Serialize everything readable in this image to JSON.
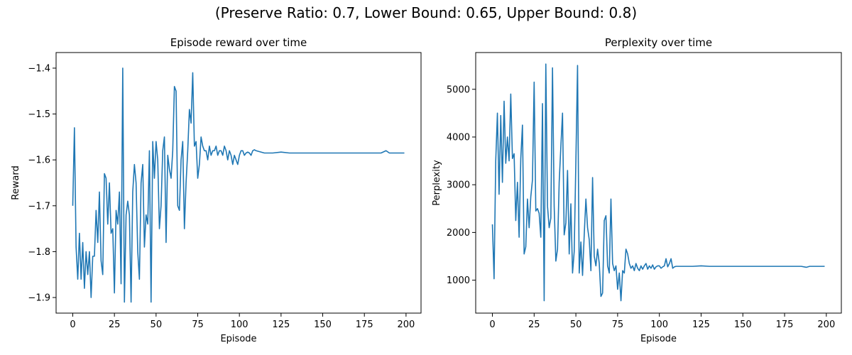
{
  "figure": {
    "suptitle": "(Preserve Ratio: 0.7, Lower Bound: 0.65, Upper Bound: 0.8)"
  },
  "colors": {
    "line": "#1f77b4",
    "axis": "#000000"
  },
  "chart_data": [
    {
      "type": "line",
      "title": "Episode reward over time",
      "xlabel": "Episode",
      "ylabel": "Reward",
      "xlim": [
        -10,
        209
      ],
      "ylim": [
        -1.934,
        -1.366
      ],
      "xticks": [
        0,
        25,
        50,
        75,
        100,
        125,
        150,
        175,
        200
      ],
      "yticks": [
        -1.9,
        -1.8,
        -1.7,
        -1.6,
        -1.5,
        -1.4
      ],
      "ytick_labels": [
        "−1.9",
        "−1.8",
        "−1.7",
        "−1.6",
        "−1.5",
        "−1.4"
      ],
      "grid": false,
      "series": [
        {
          "x": [
            0,
            1,
            2,
            3,
            4,
            5,
            6,
            7,
            8,
            9,
            10,
            11,
            12,
            13,
            14,
            15,
            16,
            17,
            18,
            19,
            20,
            21,
            22,
            23,
            24,
            25,
            26,
            27,
            28,
            29,
            30,
            31,
            32,
            33,
            34,
            35,
            36,
            37,
            38,
            39,
            40,
            41,
            42,
            43,
            44,
            45,
            46,
            47,
            48,
            49,
            50,
            51,
            52,
            53,
            54,
            55,
            56,
            57,
            58,
            59,
            60,
            61,
            62,
            63,
            64,
            65,
            66,
            67,
            68,
            69,
            70,
            71,
            72,
            73,
            74,
            75,
            76,
            77,
            78,
            79,
            80,
            81,
            82,
            83,
            84,
            85,
            86,
            87,
            88,
            89,
            90,
            91,
            92,
            93,
            94,
            95,
            96,
            97,
            98,
            99,
            100,
            101,
            102,
            103,
            104,
            105,
            106,
            107,
            108,
            109,
            110,
            115,
            120,
            125,
            130,
            135,
            140,
            145,
            150,
            155,
            160,
            165,
            170,
            175,
            180,
            185,
            188,
            190,
            199
          ],
          "y": [
            -1.7,
            -1.53,
            -1.79,
            -1.86,
            -1.76,
            -1.86,
            -1.78,
            -1.88,
            -1.8,
            -1.85,
            -1.8,
            -1.9,
            -1.81,
            -1.81,
            -1.71,
            -1.78,
            -1.67,
            -1.82,
            -1.85,
            -1.63,
            -1.64,
            -1.74,
            -1.65,
            -1.76,
            -1.75,
            -1.89,
            -1.71,
            -1.74,
            -1.67,
            -1.87,
            -1.4,
            -1.91,
            -1.72,
            -1.69,
            -1.72,
            -1.91,
            -1.67,
            -1.61,
            -1.65,
            -1.8,
            -1.86,
            -1.65,
            -1.61,
            -1.79,
            -1.72,
            -1.74,
            -1.58,
            -1.91,
            -1.56,
            -1.64,
            -1.56,
            -1.6,
            -1.75,
            -1.7,
            -1.58,
            -1.55,
            -1.78,
            -1.59,
            -1.62,
            -1.64,
            -1.58,
            -1.44,
            -1.45,
            -1.7,
            -1.71,
            -1.6,
            -1.56,
            -1.75,
            -1.65,
            -1.58,
            -1.49,
            -1.52,
            -1.41,
            -1.57,
            -1.56,
            -1.64,
            -1.61,
            -1.55,
            -1.57,
            -1.58,
            -1.58,
            -1.6,
            -1.57,
            -1.59,
            -1.58,
            -1.58,
            -1.57,
            -1.59,
            -1.58,
            -1.58,
            -1.59,
            -1.57,
            -1.58,
            -1.6,
            -1.58,
            -1.59,
            -1.61,
            -1.59,
            -1.6,
            -1.61,
            -1.59,
            -1.58,
            -1.58,
            -1.59,
            -1.585,
            -1.583,
            -1.585,
            -1.59,
            -1.58,
            -1.578,
            -1.58,
            -1.585,
            -1.585,
            -1.583,
            -1.585,
            -1.585,
            -1.585,
            -1.585,
            -1.585,
            -1.585,
            -1.585,
            -1.585,
            -1.585,
            -1.585,
            -1.585,
            -1.585,
            -1.58,
            -1.585,
            -1.585
          ]
        }
      ]
    },
    {
      "type": "line",
      "title": "Perplexity over time",
      "xlabel": "Episode",
      "ylabel": "Perplexity",
      "xlim": [
        -10,
        209
      ],
      "ylim": [
        310,
        5770
      ],
      "xticks": [
        0,
        25,
        50,
        75,
        100,
        125,
        150,
        175,
        200
      ],
      "yticks": [
        1000,
        2000,
        3000,
        4000,
        5000
      ],
      "ytick_labels": [
        "1000",
        "2000",
        "3000",
        "4000",
        "5000"
      ],
      "grid": false,
      "series": [
        {
          "x": [
            0,
            1,
            2,
            3,
            4,
            5,
            6,
            7,
            8,
            9,
            10,
            11,
            12,
            13,
            14,
            15,
            16,
            17,
            18,
            19,
            20,
            21,
            22,
            23,
            24,
            25,
            26,
            27,
            28,
            29,
            30,
            31,
            32,
            33,
            34,
            35,
            36,
            37,
            38,
            39,
            40,
            41,
            42,
            43,
            44,
            45,
            46,
            47,
            48,
            49,
            50,
            51,
            52,
            53,
            54,
            55,
            56,
            57,
            58,
            59,
            60,
            61,
            62,
            63,
            64,
            65,
            66,
            67,
            68,
            69,
            70,
            71,
            72,
            73,
            74,
            75,
            76,
            77,
            78,
            79,
            80,
            81,
            82,
            83,
            84,
            85,
            86,
            87,
            88,
            89,
            90,
            91,
            92,
            93,
            94,
            95,
            96,
            97,
            98,
            99,
            100,
            101,
            102,
            103,
            104,
            105,
            106,
            107,
            108,
            109,
            110,
            115,
            120,
            125,
            130,
            135,
            140,
            145,
            150,
            155,
            160,
            165,
            170,
            175,
            180,
            185,
            188,
            190,
            199
          ],
          "y": [
            2170,
            1030,
            3500,
            4500,
            2800,
            4450,
            3050,
            4750,
            3450,
            4000,
            3500,
            4900,
            3550,
            3650,
            2250,
            3050,
            1900,
            3550,
            4250,
            1550,
            1700,
            2700,
            2100,
            2750,
            3100,
            5150,
            2450,
            2500,
            2400,
            1900,
            4700,
            570,
            5530,
            2550,
            2100,
            2300,
            5450,
            2550,
            1400,
            1650,
            3050,
            3800,
            4500,
            1950,
            2200,
            3300,
            1550,
            2600,
            1150,
            1600,
            3500,
            5500,
            1150,
            1800,
            1100,
            1950,
            2700,
            2100,
            1850,
            1200,
            3150,
            1500,
            1300,
            1650,
            1350,
            660,
            730,
            2250,
            2350,
            1300,
            1150,
            2700,
            1350,
            1200,
            1300,
            810,
            1150,
            570,
            1200,
            1150,
            1650,
            1550,
            1350,
            1250,
            1300,
            1200,
            1350,
            1250,
            1200,
            1300,
            1230,
            1300,
            1350,
            1230,
            1300,
            1250,
            1320,
            1230,
            1280,
            1300,
            1300,
            1250,
            1280,
            1300,
            1450,
            1280,
            1350,
            1450,
            1250,
            1280,
            1290,
            1290,
            1290,
            1300,
            1290,
            1290,
            1290,
            1290,
            1290,
            1290,
            1290,
            1290,
            1290,
            1290,
            1290,
            1290,
            1270,
            1290,
            1290
          ]
        }
      ]
    }
  ]
}
